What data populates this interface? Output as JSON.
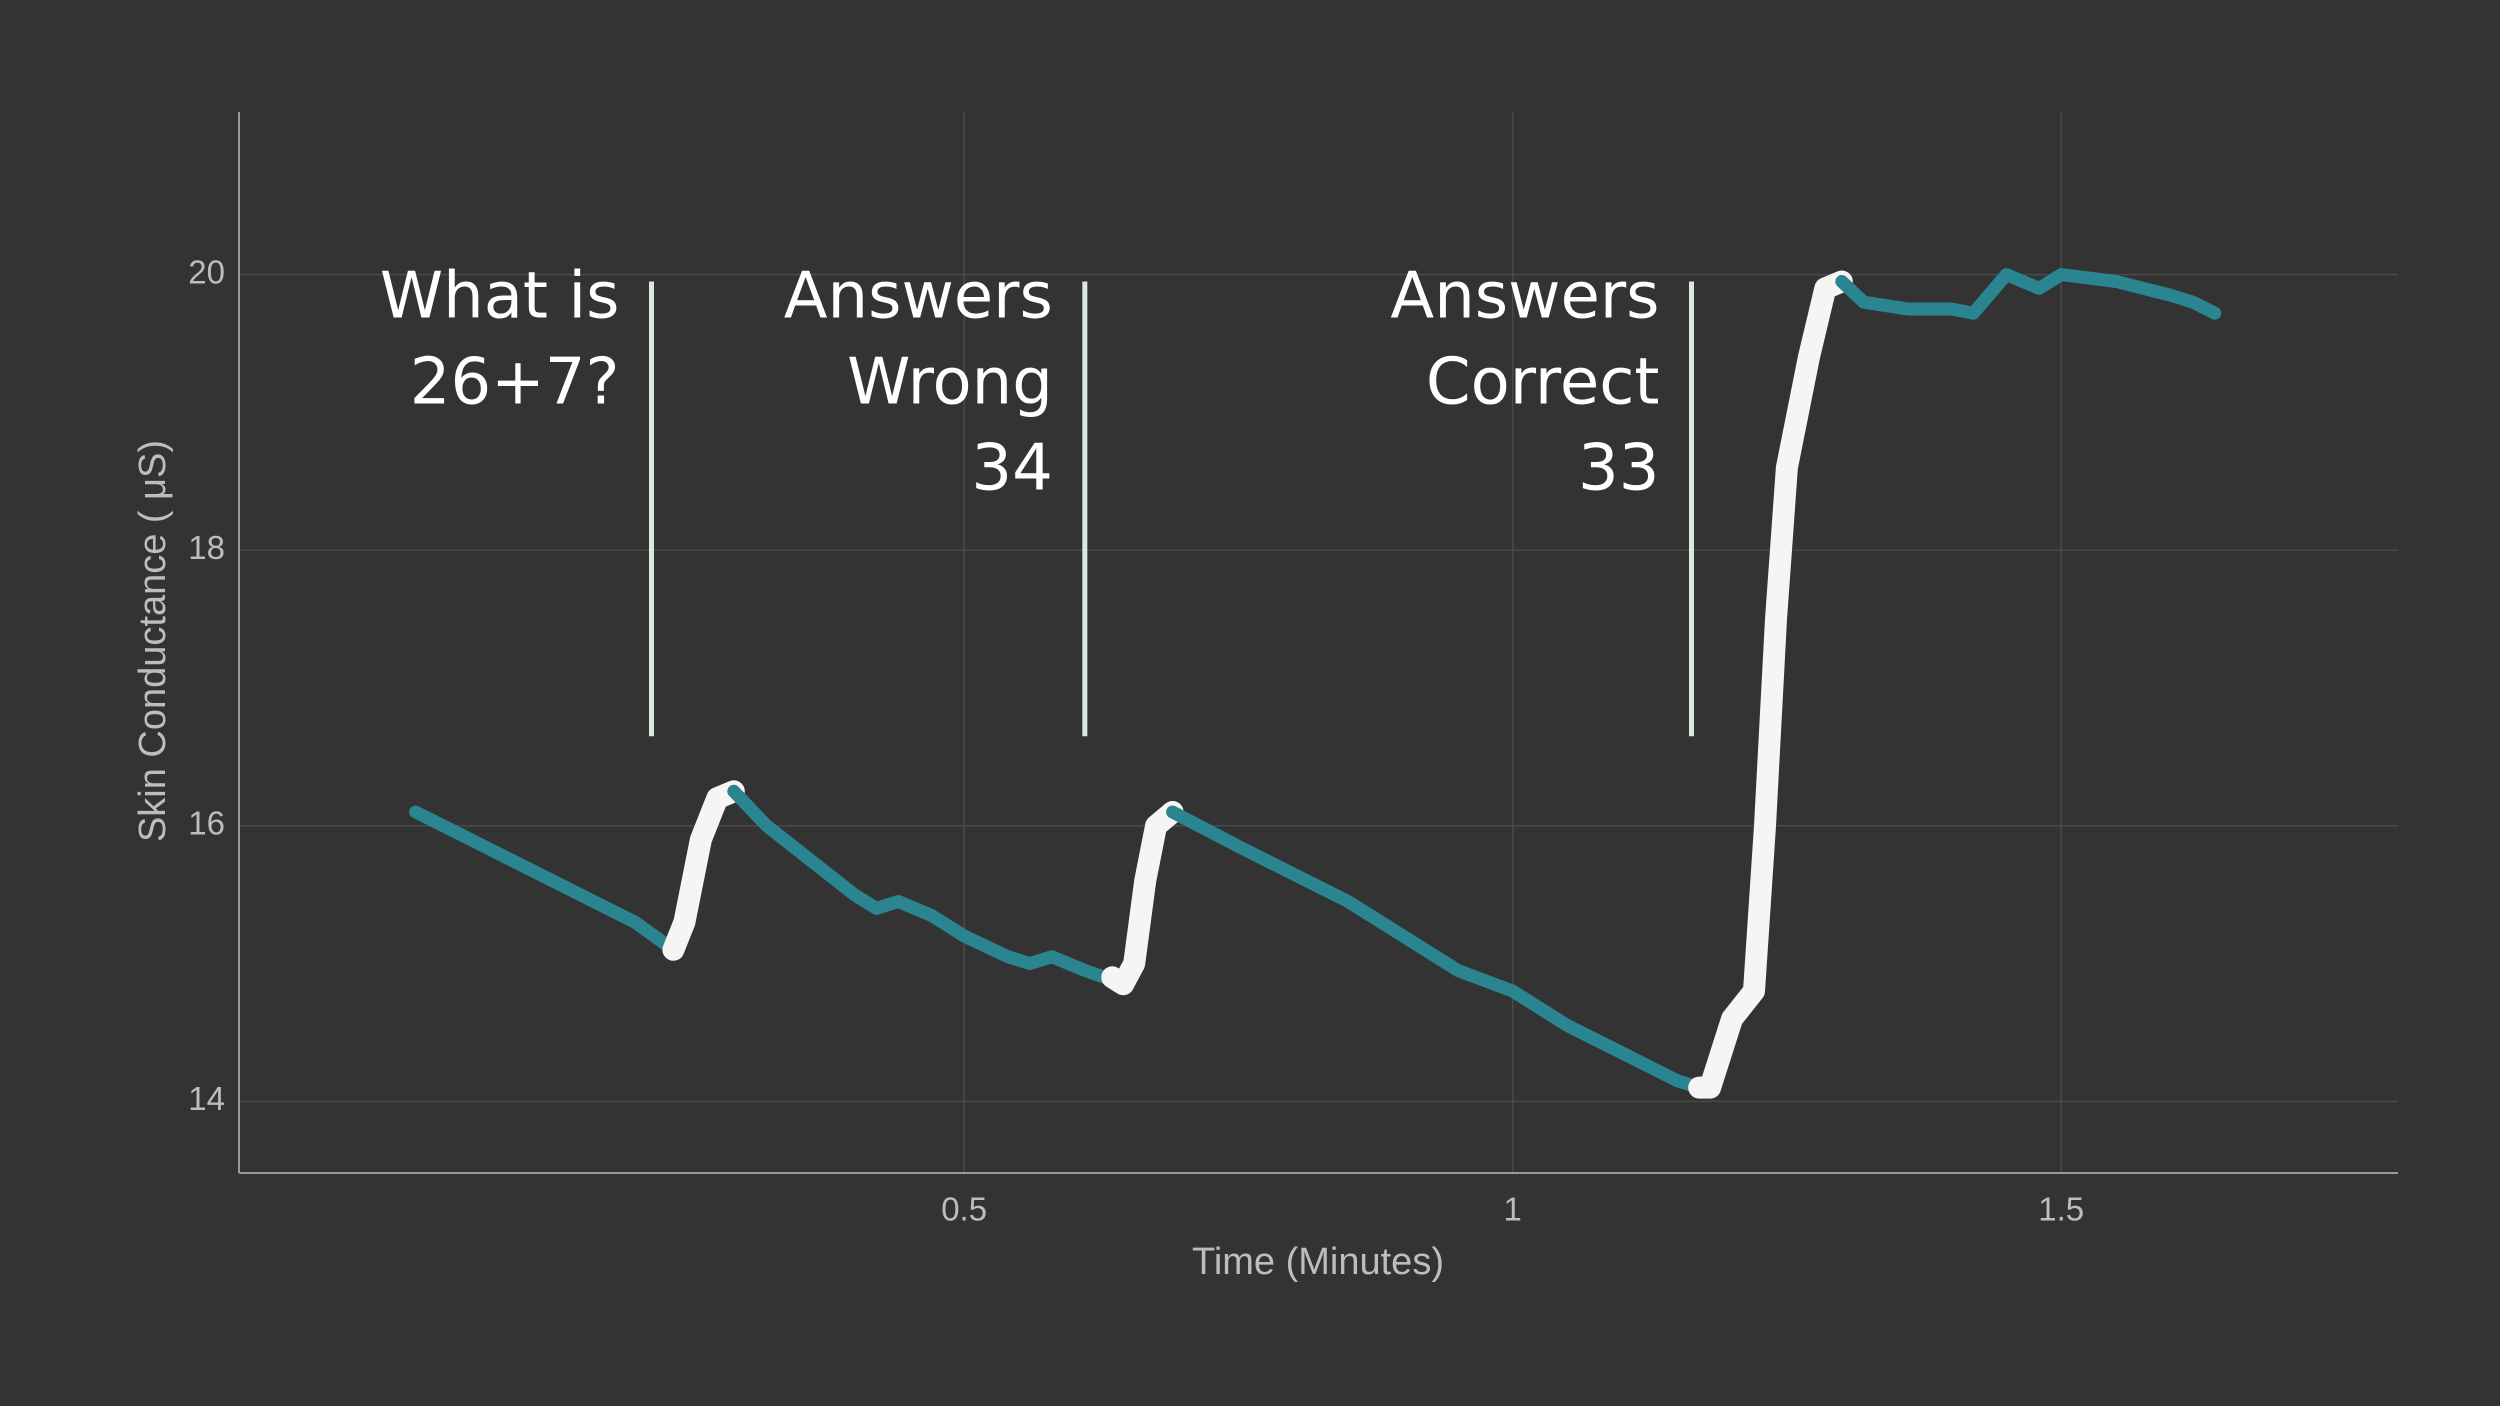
{
  "chart_data": {
    "type": "line",
    "x_label": "Time (Minutes)",
    "y_label": "Skin Conductance ( μS)",
    "xlim": [
      -0.161,
      1.807
    ],
    "ylim": [
      13.48,
      21.18
    ],
    "xticks": [
      0.5,
      1,
      1.5
    ],
    "yticks": [
      14,
      16,
      18,
      20
    ],
    "grid": true,
    "series": [
      {
        "color": "#2a8590",
        "x": [
          0,
          0.05,
          0.1,
          0.15,
          0.2,
          0.235
        ],
        "values": [
          16.1,
          15.9,
          15.7,
          15.5,
          15.3,
          15.1
        ]
      },
      {
        "color": "#f7f5f3",
        "x": [
          0.235,
          0.245,
          0.26,
          0.275,
          0.29
        ],
        "values": [
          15.1,
          15.3,
          15.9,
          16.2,
          16.25
        ]
      },
      {
        "color": "#2a8590",
        "x": [
          0.29,
          0.32,
          0.36,
          0.4,
          0.42,
          0.44,
          0.47,
          0.5,
          0.54,
          0.56,
          0.58,
          0.61,
          0.635
        ],
        "values": [
          16.25,
          16.0,
          15.75,
          15.5,
          15.4,
          15.45,
          15.35,
          15.2,
          15.05,
          15.0,
          15.05,
          14.95,
          14.88
        ]
      },
      {
        "color": "#f7f5f3",
        "x": [
          0.635,
          0.645,
          0.655,
          0.665,
          0.675,
          0.69
        ],
        "values": [
          14.9,
          14.85,
          15.0,
          15.6,
          16.0,
          16.1
        ]
      },
      {
        "color": "#2a8590",
        "x": [
          0.69,
          0.75,
          0.8,
          0.85,
          0.9,
          0.95,
          1.0,
          1.05,
          1.1,
          1.15,
          1.17
        ],
        "values": [
          16.1,
          15.85,
          15.65,
          15.45,
          15.2,
          14.95,
          14.8,
          14.55,
          14.35,
          14.15,
          14.1
        ]
      },
      {
        "color": "#f7f5f3",
        "x": [
          1.17,
          1.18,
          1.2,
          1.22,
          1.23,
          1.24,
          1.25,
          1.27,
          1.285,
          1.3
        ],
        "values": [
          14.1,
          14.1,
          14.6,
          14.8,
          16.0,
          17.5,
          18.6,
          19.4,
          19.9,
          19.95
        ]
      },
      {
        "color": "#2a8590",
        "x": [
          1.3,
          1.32,
          1.36,
          1.4,
          1.42,
          1.45,
          1.48,
          1.5,
          1.55,
          1.6,
          1.62,
          1.64
        ],
        "values": [
          19.95,
          19.8,
          19.75,
          19.75,
          19.72,
          20.0,
          19.9,
          20.0,
          19.95,
          19.85,
          19.8,
          19.72
        ]
      }
    ],
    "annotations": [
      {
        "x": 0.215,
        "y": [
          16.65,
          19.95
        ],
        "text": [
          "What is",
          "26+7?"
        ]
      },
      {
        "x": 0.61,
        "y": [
          16.65,
          19.95
        ],
        "text": [
          "Answers",
          "Wrong",
          "34"
        ]
      },
      {
        "x": 1.163,
        "y": [
          16.65,
          19.95
        ],
        "text": [
          "Answers",
          "Correct",
          "33"
        ]
      }
    ],
    "annotation_color": "#d8eadb"
  }
}
